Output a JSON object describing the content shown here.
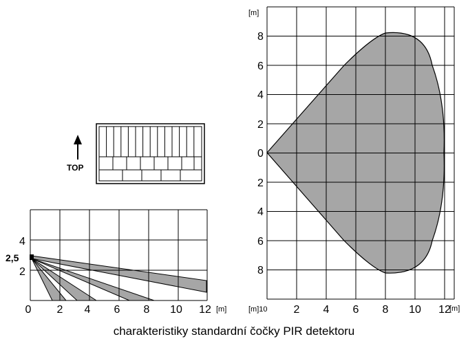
{
  "caption": "charakteristiky standardní čočky PIR detektoru",
  "top_view": {
    "unit_y": "[m]",
    "unit_x": "[m]",
    "y_ticks_upper": [
      "8",
      "6",
      "4",
      "2"
    ],
    "y_tick_zero": "0",
    "y_ticks_lower": [
      "2",
      "4",
      "6",
      "8"
    ],
    "x_ticks": [
      "2",
      "4",
      "6",
      "8",
      "10",
      "12"
    ],
    "x_tick_left": "[m]10",
    "shape_color": "#a6a6a6"
  },
  "lens": {
    "direction_label": "TOP",
    "arrow_icon": "up-arrow-icon"
  },
  "side_view": {
    "mount_height_label": "2,5",
    "y_ticks": [
      "4",
      "2"
    ],
    "x_ticks": [
      "0",
      "2",
      "4",
      "6",
      "8",
      "10",
      "12"
    ],
    "x_unit": "[m]",
    "beam_color": "#a6a6a6"
  }
}
